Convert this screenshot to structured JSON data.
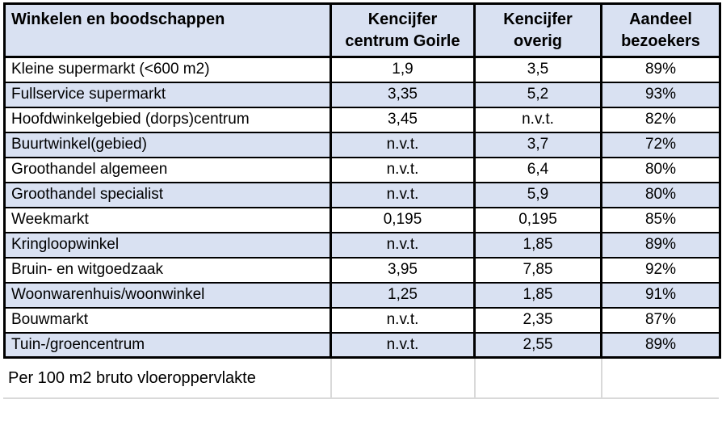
{
  "table": {
    "title": "Winkelen en boodschappen",
    "header": {
      "col1": "Winkelen en boodschappen",
      "col2": [
        "Kencijfer",
        "centrum Goirle"
      ],
      "col3": [
        "Kencijfer",
        "overig"
      ],
      "col4": [
        "Aandeel",
        "bezoekers"
      ]
    },
    "rows": [
      {
        "label": "Kleine supermarkt (<600 m2)",
        "centrum": "1,9",
        "overig": "3,5",
        "aandeel": "89%"
      },
      {
        "label": "Fullservice supermarkt",
        "centrum": "3,35",
        "overig": "5,2",
        "aandeel": "93%"
      },
      {
        "label": "Hoofdwinkelgebied (dorps)centrum",
        "centrum": "3,45",
        "overig": "n.v.t.",
        "aandeel": "82%"
      },
      {
        "label": "Buurtwinkel(gebied)",
        "centrum": "n.v.t.",
        "overig": "3,7",
        "aandeel": "72%"
      },
      {
        "label": "Groothandel algemeen",
        "centrum": "n.v.t.",
        "overig": "6,4",
        "aandeel": "80%"
      },
      {
        "label": "Groothandel specialist",
        "centrum": "n.v.t.",
        "overig": "5,9",
        "aandeel": "80%"
      },
      {
        "label": "Weekmarkt",
        "centrum": "0,195",
        "overig": "0,195",
        "aandeel": "85%"
      },
      {
        "label": "Kringloopwinkel",
        "centrum": "n.v.t.",
        "overig": "1,85",
        "aandeel": "89%"
      },
      {
        "label": "Bruin- en witgoedzaak",
        "centrum": "3,95",
        "overig": "7,85",
        "aandeel": "92%"
      },
      {
        "label": "Woonwarenhuis/woonwinkel",
        "centrum": "1,25",
        "overig": "1,85",
        "aandeel": "91%"
      },
      {
        "label": "Bouwmarkt",
        "centrum": "n.v.t.",
        "overig": "2,35",
        "aandeel": "87%"
      },
      {
        "label": "Tuin-/groencentrum",
        "centrum": "n.v.t.",
        "overig": "2,55",
        "aandeel": "89%"
      }
    ],
    "footnote": "Per 100 m2 bruto vloeroppervlakte",
    "colors": {
      "header_bg": "#D9E1F2",
      "row_alt_bg": "#D9E1F2",
      "row_bg": "#FFFFFF",
      "border": "#000000",
      "footnote_border": "#D9D9D9",
      "text": "#000000"
    }
  },
  "chart_data": {
    "type": "table",
    "title": "Winkelen en boodschappen",
    "categories": [
      "Kleine supermarkt (<600 m2)",
      "Fullservice supermarkt",
      "Hoofdwinkelgebied (dorps)centrum",
      "Buurtwinkel(gebied)",
      "Groothandel algemeen",
      "Groothandel specialist",
      "Weekmarkt",
      "Kringloopwinkel",
      "Bruin- en witgoedzaak",
      "Woonwarenhuis/woonwinkel",
      "Bouwmarkt",
      "Tuin-/groencentrum"
    ],
    "series": [
      {
        "name": "Kencijfer centrum Goirle",
        "values": [
          1.9,
          3.35,
          3.45,
          null,
          null,
          null,
          0.195,
          null,
          3.95,
          1.25,
          null,
          null
        ]
      },
      {
        "name": "Kencijfer overig",
        "values": [
          3.5,
          5.2,
          null,
          3.7,
          6.4,
          5.9,
          0.195,
          1.85,
          7.85,
          1.85,
          2.35,
          2.55
        ]
      },
      {
        "name": "Aandeel bezoekers",
        "values": [
          "89%",
          "93%",
          "82%",
          "72%",
          "80%",
          "80%",
          "85%",
          "89%",
          "92%",
          "91%",
          "87%",
          "89%"
        ]
      }
    ],
    "na_display": "n.v.t.",
    "footnote": "Per 100 m2 bruto vloeroppervlakte",
    "layout": {
      "decimal_separator": ",",
      "alternating_row_colors": [
        "#FFFFFF",
        "#D9E1F2"
      ],
      "grid": "black solid borders"
    }
  }
}
